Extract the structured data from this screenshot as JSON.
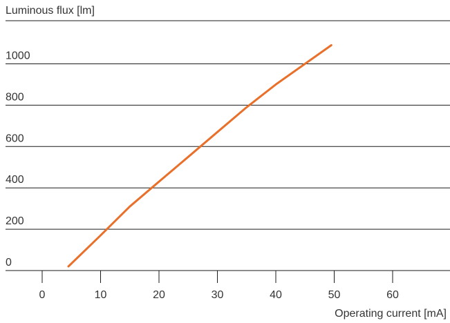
{
  "chart_data": {
    "type": "line",
    "title": "",
    "ylabel": "Luminous flux [lm]",
    "xlabel": "Operating current [mA]",
    "xlim": [
      0,
      70
    ],
    "ylim": [
      0,
      1150
    ],
    "x_ticks": [
      0,
      10,
      20,
      30,
      40,
      50,
      60
    ],
    "y_ticks": [
      0,
      200,
      400,
      600,
      800,
      1000
    ],
    "grid": "horizontal",
    "series": [
      {
        "color": "#e8702a",
        "x": [
          4.5,
          10,
          15,
          20,
          25,
          30,
          35,
          40,
          45,
          49.5
        ],
        "y": [
          20,
          170,
          310,
          430,
          550,
          670,
          790,
          900,
          1000,
          1090
        ]
      }
    ]
  }
}
